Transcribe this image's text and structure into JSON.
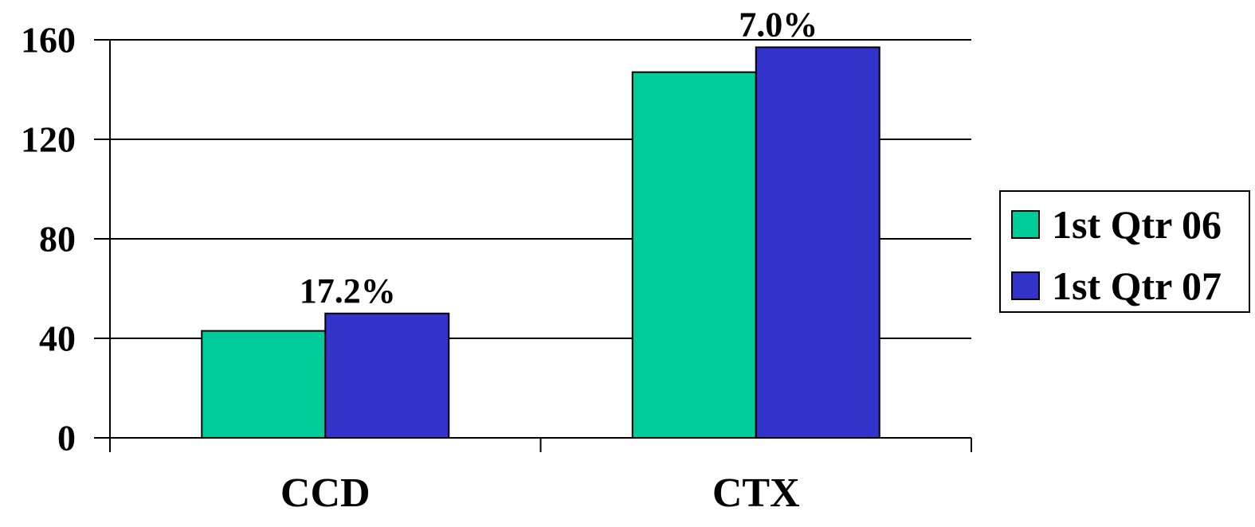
{
  "chart_data": {
    "type": "bar",
    "categories": [
      "CCD",
      "CTX"
    ],
    "series": [
      {
        "name": "1st Qtr 06",
        "values": [
          43,
          147
        ],
        "color": "#00CC99"
      },
      {
        "name": "1st Qtr 07",
        "values": [
          50,
          157
        ],
        "color": "#3333CC"
      }
    ],
    "annotations": [
      "17.2%",
      "7.0%"
    ],
    "yticks": [
      "0",
      "40",
      "80",
      "120",
      "160"
    ],
    "ylim": [
      0,
      160
    ],
    "grid": true,
    "legend_position": "right"
  }
}
